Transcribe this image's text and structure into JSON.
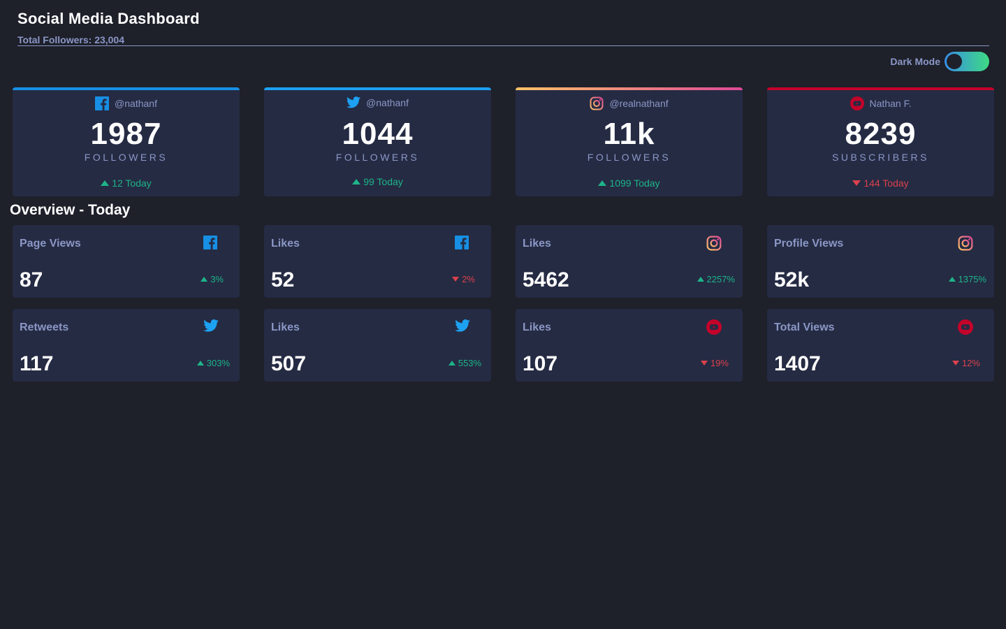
{
  "header": {
    "title": "Social Media Dashboard",
    "total_followers": "Total Followers: 23,004"
  },
  "toggle": {
    "label": "Dark Mode",
    "on": false
  },
  "colors": {
    "background": "#1e202a",
    "card": "#252b43",
    "text_muted": "#8b97c6",
    "up": "#1db489",
    "down": "#dc414c",
    "facebook": "#178fe4",
    "twitter": "#1da1f2",
    "youtube": "#c4032a"
  },
  "followers": [
    {
      "platform": "facebook-icon",
      "handle": "@nathanf",
      "count": "1987",
      "unit": "FOLLOWERS",
      "today": "12 Today",
      "trend": "up"
    },
    {
      "platform": "twitter-icon",
      "handle": "@nathanf",
      "count": "1044",
      "unit": "FOLLOWERS",
      "today": "99 Today",
      "trend": "up"
    },
    {
      "platform": "instagram-icon",
      "handle": "@realnathanf",
      "count": "11k",
      "unit": "FOLLOWERS",
      "today": "1099 Today",
      "trend": "up"
    },
    {
      "platform": "youtube-icon",
      "handle": "Nathan F.",
      "count": "8239",
      "unit": "SUBSCRIBERS",
      "today": "144 Today",
      "trend": "down"
    }
  ],
  "overview": {
    "title": "Overview - Today",
    "cards": [
      {
        "label": "Page Views",
        "icon": "facebook-icon",
        "value": "87",
        "change": "3%",
        "trend": "up"
      },
      {
        "label": "Likes",
        "icon": "facebook-icon",
        "value": "52",
        "change": "2%",
        "trend": "down"
      },
      {
        "label": "Likes",
        "icon": "instagram-icon",
        "value": "5462",
        "change": "2257%",
        "trend": "up"
      },
      {
        "label": "Profile Views",
        "icon": "instagram-icon",
        "value": "52k",
        "change": "1375%",
        "trend": "up"
      },
      {
        "label": "Retweets",
        "icon": "twitter-icon",
        "value": "117",
        "change": "303%",
        "trend": "up"
      },
      {
        "label": "Likes",
        "icon": "twitter-icon",
        "value": "507",
        "change": "553%",
        "trend": "up"
      },
      {
        "label": "Likes",
        "icon": "youtube-icon",
        "value": "107",
        "change": "19%",
        "trend": "down"
      },
      {
        "label": "Total Views",
        "icon": "youtube-icon",
        "value": "1407",
        "change": "12%",
        "trend": "down"
      }
    ]
  }
}
